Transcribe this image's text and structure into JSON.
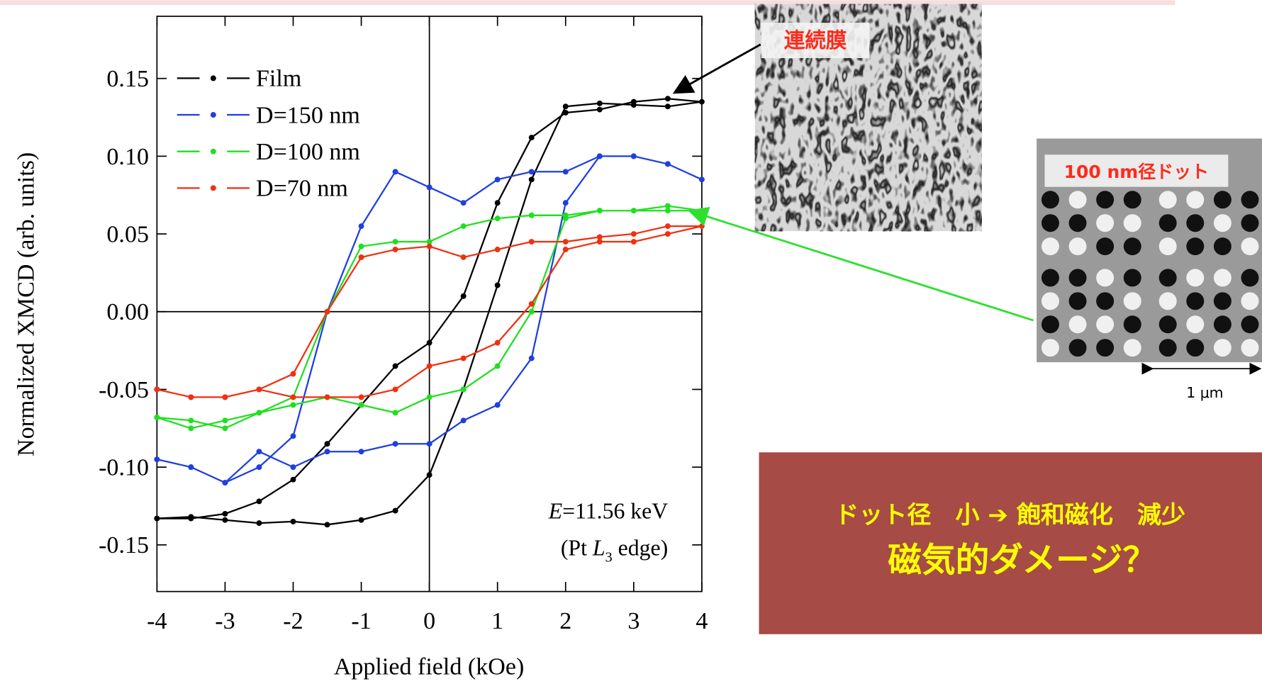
{
  "chart_data": {
    "type": "line",
    "x_label": "Applied field (kOe)",
    "y_label": "Normalized XMCD (arb. units)",
    "x": [
      -4,
      -3.5,
      -3,
      -2.5,
      -2,
      -1.5,
      -1,
      -0.5,
      0,
      0.5,
      1,
      1.5,
      2,
      2.5,
      3,
      3.5,
      4,
      3.5,
      3,
      2.5,
      2,
      1.5,
      1,
      0.5,
      0,
      -0.5,
      -1,
      -1.5,
      -2,
      -2.5,
      -3,
      -3.5,
      -4
    ],
    "series": [
      {
        "name": "Film",
        "color": "#000000",
        "values": [
          -0.133,
          -0.132,
          -0.134,
          -0.136,
          -0.135,
          -0.137,
          -0.134,
          -0.128,
          -0.105,
          -0.05,
          0.017,
          0.085,
          0.132,
          0.134,
          0.133,
          0.132,
          0.135,
          0.137,
          0.135,
          0.13,
          0.128,
          0.112,
          0.07,
          0.01,
          -0.02,
          -0.035,
          -0.06,
          -0.085,
          -0.108,
          -0.122,
          -0.13,
          -0.133,
          -0.133
        ]
      },
      {
        "name": "D=150 nm",
        "color": "#1f3fe0",
        "values": [
          -0.095,
          -0.1,
          -0.11,
          -0.09,
          -0.1,
          -0.09,
          -0.09,
          -0.085,
          -0.085,
          -0.07,
          -0.06,
          -0.03,
          0.07,
          0.1,
          0.1,
          0.095,
          0.085,
          0.095,
          0.1,
          0.1,
          0.09,
          0.09,
          0.085,
          0.07,
          0.08,
          0.09,
          0.055,
          0.0,
          -0.08,
          -0.1,
          -0.11,
          -0.1,
          -0.095
        ]
      },
      {
        "name": "D=100 nm",
        "color": "#1ee01e",
        "values": [
          -0.068,
          -0.07,
          -0.075,
          -0.065,
          -0.06,
          -0.055,
          -0.06,
          -0.065,
          -0.055,
          -0.05,
          -0.035,
          0.0,
          0.06,
          0.065,
          0.065,
          0.068,
          0.065,
          0.065,
          0.065,
          0.065,
          0.062,
          0.062,
          0.06,
          0.055,
          0.045,
          0.045,
          0.042,
          0.0,
          -0.055,
          -0.065,
          -0.07,
          -0.075,
          -0.068
        ]
      },
      {
        "name": "D=70 nm",
        "color": "#f03010",
        "values": [
          -0.05,
          -0.055,
          -0.055,
          -0.05,
          -0.055,
          -0.055,
          -0.055,
          -0.05,
          -0.035,
          -0.03,
          -0.02,
          0.005,
          0.04,
          0.045,
          0.045,
          0.05,
          0.055,
          0.055,
          0.05,
          0.048,
          0.045,
          0.045,
          0.04,
          0.035,
          0.042,
          0.04,
          0.035,
          0.0,
          -0.04,
          -0.05,
          -0.055,
          -0.055,
          -0.05
        ]
      }
    ],
    "xlim": [
      -4,
      4
    ],
    "xticks": [
      -4,
      -3,
      -2,
      -1,
      0,
      1,
      2,
      3,
      4
    ],
    "ylim": [
      -0.18,
      0.19
    ],
    "yticks": [
      -0.15,
      {
        "value": -0.1,
        "label": "-0.10"
      },
      -0.05,
      {
        "value": 0,
        "label": "0.00"
      },
      0.05,
      {
        "value": 0.1,
        "label": "0.10"
      },
      0.15
    ],
    "legend": "top-left",
    "annotation": {
      "energy_symbol": "E",
      "energy": "=11.56 keV",
      "edge_open": "(Pt ",
      "edge_symbol": "L",
      "edge_sub": "3",
      "edge_close": " edge)"
    }
  },
  "images": {
    "film_label": "連続膜",
    "dot_label": "100 nm径ドット",
    "scale": "1 μm"
  },
  "conclusion": {
    "line1": "ドット径　小 ➔ 飽和磁化　減少",
    "line2": "磁気的ダメージ？"
  }
}
